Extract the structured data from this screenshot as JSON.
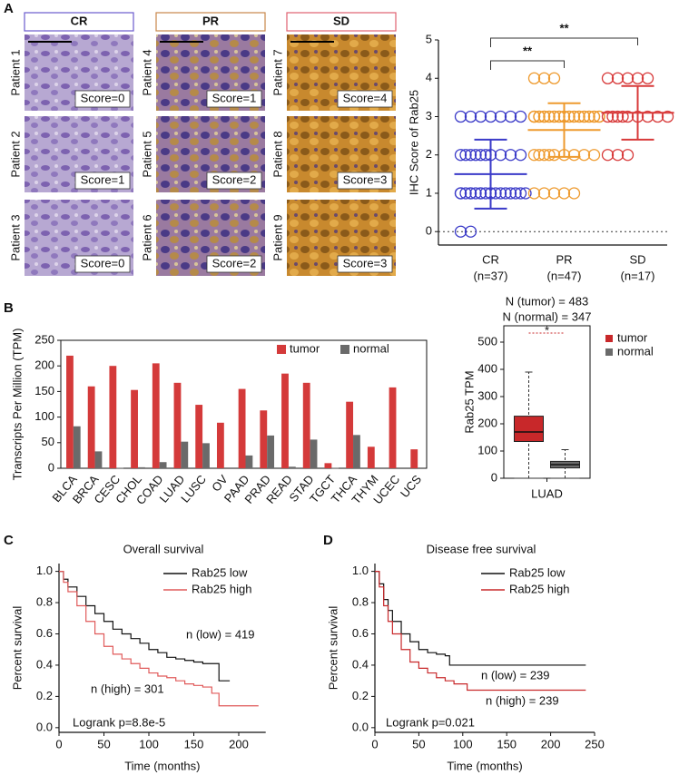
{
  "panels": [
    "A",
    "B",
    "C",
    "D"
  ],
  "ihc": {
    "groups": [
      "CR",
      "PR",
      "SD"
    ],
    "patients": [
      "Patient 1",
      "Patient 2",
      "Patient 3",
      "Patient 4",
      "Patient 5",
      "Patient 6",
      "Patient 7",
      "Patient 8",
      "Patient 9"
    ],
    "scores": [
      "Score=0",
      "Score=1",
      "Score=0",
      "Score=1",
      "Score=2",
      "Score=2",
      "Score=4",
      "Score=3",
      "Score=3"
    ]
  },
  "chart_data": [
    {
      "type": "strip",
      "y_label": "IHC Score of Rab25",
      "categories": [
        "CR",
        "PR",
        "SD"
      ],
      "category_sublabels": [
        "(n=37)",
        "(n=47)",
        "(n=17)"
      ],
      "colors": [
        "#3a3ac8",
        "#ee9a2e",
        "#d83a3a"
      ],
      "values": [
        [
          0,
          0,
          1,
          1,
          1,
          1,
          1,
          1,
          1,
          1,
          1,
          1,
          1,
          1,
          1,
          1,
          1,
          1,
          1,
          1,
          2,
          2,
          2,
          2,
          2,
          2,
          2,
          2,
          2,
          2,
          3,
          3,
          3,
          3,
          3,
          3,
          3
        ],
        [
          1,
          1,
          1,
          1,
          1,
          2,
          2,
          2,
          2,
          2,
          2,
          2,
          2,
          2,
          3,
          3,
          3,
          3,
          3,
          3,
          3,
          3,
          3,
          3,
          3,
          3,
          3,
          3,
          3,
          3,
          3,
          3,
          3,
          3,
          3,
          3,
          3,
          3,
          3,
          3,
          3,
          3,
          3,
          3,
          4,
          4,
          4
        ],
        [
          2,
          2,
          2,
          3,
          3,
          3,
          3,
          3,
          3,
          3,
          3,
          3,
          4,
          4,
          4,
          4,
          4
        ]
      ],
      "mean": [
        1.5,
        2.65,
        3.1
      ],
      "sd": [
        0.9,
        0.7,
        0.7
      ],
      "annotations": [
        "**",
        "**"
      ],
      "baseline": "dotted",
      "ylim": [
        -0.35,
        5
      ],
      "yticks": [
        0,
        1,
        2,
        3,
        4,
        5
      ]
    },
    {
      "type": "bar",
      "y_label": "Transcripts Per Million (TPM)",
      "categories": [
        "BLCA",
        "BRCA",
        "CESC",
        "CHOL",
        "COAD",
        "LUAD",
        "LUSC",
        "OV",
        "PAAD",
        "PRAD",
        "READ",
        "STAD",
        "TGCT",
        "THCA",
        "THYM",
        "UCEC",
        "UCS"
      ],
      "series": [
        {
          "name": "tumor",
          "color": "#d43a3a",
          "values": [
            220,
            160,
            200,
            153,
            205,
            167,
            124,
            89,
            155,
            113,
            185,
            167,
            10,
            130,
            42,
            158,
            37
          ]
        },
        {
          "name": "normal",
          "color": "#6a6a6a",
          "values": [
            82,
            33,
            1,
            2,
            12,
            52,
            49,
            null,
            25,
            64,
            3,
            56,
            1,
            65,
            null,
            null,
            null
          ]
        }
      ],
      "legend": "top-right",
      "ylim": [
        0,
        250
      ],
      "yticks": [
        0,
        50,
        100,
        150,
        200,
        250
      ]
    },
    {
      "type": "box",
      "title": "N (tumor) = 483",
      "subtitle": "N (normal) = 347",
      "y_label": "Rab25 TPM",
      "categories": [
        "LUAD"
      ],
      "series": [
        {
          "name": "tumor",
          "color": "#c8282a",
          "whislo": 0,
          "q1": 135,
          "med": 170,
          "q3": 228,
          "whishi": 390
        },
        {
          "name": "normal",
          "color": "#6a6a6a",
          "whislo": 0,
          "q1": 38,
          "med": 50,
          "q3": 62,
          "whishi": 105
        }
      ],
      "annotations": [
        "*"
      ],
      "legend": "right",
      "ylim": [
        0,
        560
      ],
      "yticks": [
        0,
        100,
        200,
        300,
        400,
        500
      ]
    },
    {
      "type": "survival",
      "title": "Overall survival",
      "x_label": "Time (months)",
      "y_label": "Percent survival",
      "series": [
        {
          "name": "Rab25 low",
          "color": "#111111",
          "x": [
            0,
            5,
            10,
            20,
            30,
            40,
            50,
            60,
            70,
            80,
            90,
            100,
            110,
            120,
            130,
            140,
            150,
            160,
            178,
            190
          ],
          "y": [
            1,
            0.95,
            0.9,
            0.84,
            0.78,
            0.73,
            0.68,
            0.63,
            0.6,
            0.57,
            0.54,
            0.5,
            0.48,
            0.45,
            0.44,
            0.43,
            0.42,
            0.41,
            0.3,
            0.3
          ]
        },
        {
          "name": "Rab25 high",
          "color": "#e05a5a",
          "x": [
            0,
            5,
            10,
            20,
            30,
            40,
            50,
            60,
            70,
            80,
            90,
            100,
            110,
            120,
            130,
            140,
            150,
            160,
            170,
            178,
            222
          ],
          "y": [
            1,
            0.93,
            0.87,
            0.78,
            0.68,
            0.6,
            0.52,
            0.47,
            0.44,
            0.41,
            0.38,
            0.35,
            0.33,
            0.32,
            0.3,
            0.28,
            0.27,
            0.26,
            0.22,
            0.14,
            0.14
          ]
        }
      ],
      "annotations": [
        "n (low) = 419",
        "n (high) = 301",
        "Logrank p=8.8e-5"
      ],
      "legend": "top-right",
      "xlim": [
        0,
        230
      ],
      "xticks": [
        0,
        50,
        100,
        150,
        200
      ],
      "ylim": [
        -0.03,
        1.05
      ],
      "yticks": [
        {
          "value": 0,
          "label": "0.0"
        },
        0.2,
        0.4,
        0.6,
        0.8,
        {
          "value": 1,
          "label": "1.0"
        }
      ]
    },
    {
      "type": "survival",
      "title": "Disease free survival",
      "x_label": "Time (months)",
      "y_label": "Percent survival",
      "series": [
        {
          "name": "Rab25 low",
          "color": "#111111",
          "x": [
            0,
            5,
            10,
            15,
            20,
            30,
            40,
            50,
            60,
            70,
            80,
            85,
            240
          ],
          "y": [
            1,
            0.92,
            0.82,
            0.75,
            0.68,
            0.6,
            0.55,
            0.5,
            0.48,
            0.47,
            0.46,
            0.4,
            0.4
          ]
        },
        {
          "name": "Rab25 high",
          "color": "#c8282a",
          "x": [
            0,
            5,
            10,
            15,
            20,
            30,
            40,
            50,
            60,
            70,
            80,
            90,
            105,
            240
          ],
          "y": [
            1,
            0.9,
            0.78,
            0.68,
            0.6,
            0.5,
            0.42,
            0.38,
            0.35,
            0.32,
            0.3,
            0.28,
            0.24,
            0.24
          ]
        }
      ],
      "annotations": [
        "n (low) = 239",
        "n (high) = 239",
        "Logrank p=0.021"
      ],
      "legend": "top-right",
      "xlim": [
        0,
        250
      ],
      "xticks": [
        0,
        50,
        100,
        150,
        200,
        250
      ],
      "ylim": [
        -0.03,
        1.05
      ],
      "yticks": [
        {
          "value": 0,
          "label": "0.0"
        },
        0.2,
        0.4,
        0.6,
        0.8,
        {
          "value": 1,
          "label": "1.0"
        }
      ]
    }
  ]
}
